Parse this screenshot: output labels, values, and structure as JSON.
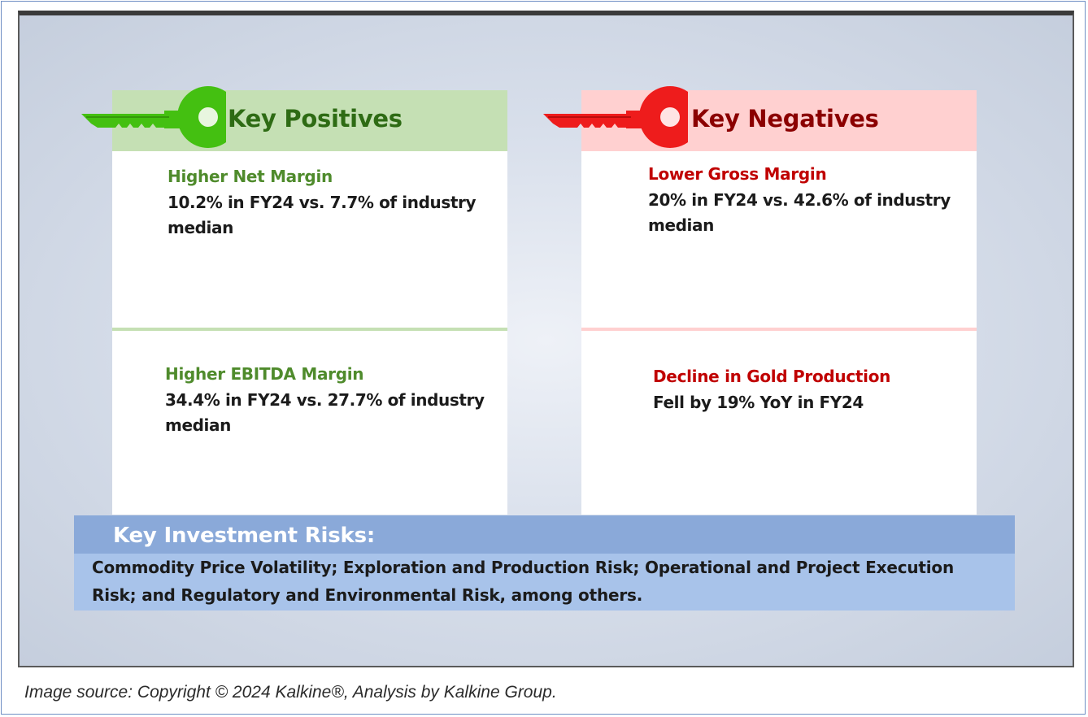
{
  "colors": {
    "positive_accent": "#44c011",
    "positive_header_bg": "#c5e0b4",
    "positive_title": "#4f8b2c",
    "negative_accent": "#ee1c1c",
    "negative_header_bg": "#ffd0d0",
    "negative_title": "#c00000",
    "risk_header_bg": "#8aa9d9",
    "risk_body_bg": "#a8c3ea"
  },
  "positives": {
    "icon": "key-icon",
    "title": "Key Positives",
    "items": [
      {
        "title": "Higher Net Margin",
        "text_line1": "10.2% in FY24 vs. 7.7% of industry",
        "text_line2": "median"
      },
      {
        "title": "Higher EBITDA Margin",
        "text_line1": "34.4% in FY24 vs. 27.7% of industry",
        "text_line2": "median"
      }
    ]
  },
  "negatives": {
    "icon": "key-icon",
    "title": "Key Negatives",
    "items": [
      {
        "title": "Lower Gross Margin",
        "text_line1": "20% in FY24 vs. 42.6% of industry",
        "text_line2": "median"
      },
      {
        "title": "Decline in Gold Production",
        "text_line1": "Fell by 19% YoY in FY24"
      }
    ]
  },
  "risks": {
    "title": "Key Investment Risks:",
    "text_line1": "Commodity Price Volatility; Exploration and Production Risk; Operational and Project Execution",
    "text_line2": "Risk; and Regulatory and Environmental Risk,  among others."
  },
  "caption": "Image source: Copyright © 2024 Kalkine®, Analysis by Kalkine Group."
}
